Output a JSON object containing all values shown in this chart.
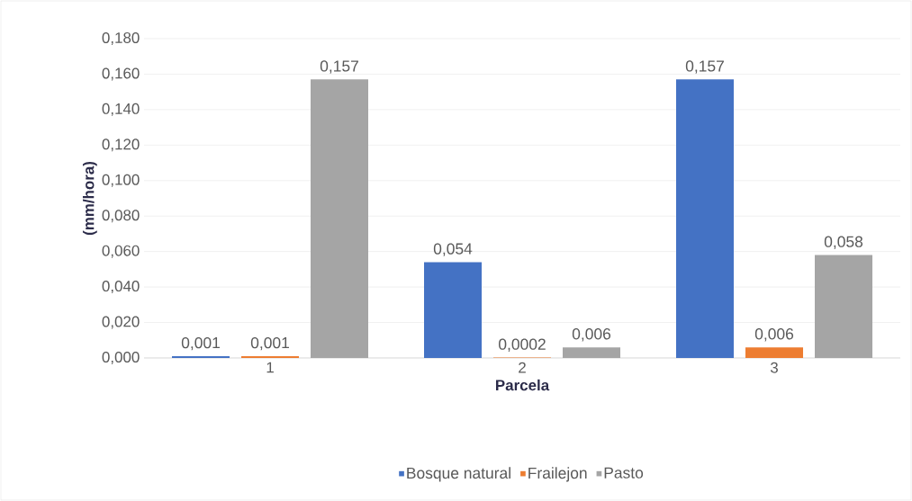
{
  "chart_data": {
    "type": "bar",
    "xlabel": "Parcela",
    "ylabel": "(mm/hora)",
    "categories": [
      "1",
      "2",
      "3"
    ],
    "series": [
      {
        "name": "Bosque natural",
        "color": "#4472c4",
        "values": [
          0.001,
          0.054,
          0.157
        ],
        "value_labels": [
          "0,001",
          "0,054",
          "0,157"
        ]
      },
      {
        "name": "Frailejon",
        "color": "#ed7d31",
        "values": [
          0.001,
          0.0002,
          0.006
        ],
        "value_labels": [
          "0,001",
          "0,0002",
          "0,006"
        ]
      },
      {
        "name": "Pasto",
        "color": "#a5a5a5",
        "values": [
          0.157,
          0.006,
          0.058
        ],
        "value_labels": [
          "0,157",
          "0,006",
          "0,058"
        ]
      }
    ],
    "ylim": [
      0,
      0.18
    ],
    "yticks": [
      {
        "value": 0,
        "label": "0,000"
      },
      {
        "value": 0.02,
        "label": "0,020"
      },
      {
        "value": 0.04,
        "label": "0,040"
      },
      {
        "value": 0.06,
        "label": "0,060"
      },
      {
        "value": 0.08,
        "label": "0,080"
      },
      {
        "value": 0.1,
        "label": "0,100"
      },
      {
        "value": 0.12,
        "label": "0,120"
      },
      {
        "value": 0.14,
        "label": "0,140"
      },
      {
        "value": 0.16,
        "label": "0,160"
      },
      {
        "value": 0.18,
        "label": "0,180"
      }
    ],
    "grid": "y",
    "legend": "bottom"
  }
}
